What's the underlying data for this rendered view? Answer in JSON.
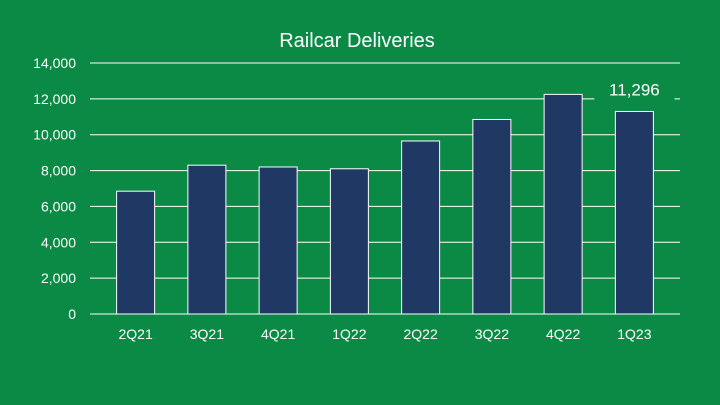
{
  "chart_data": {
    "type": "bar",
    "title": "Railcar Deliveries",
    "categories": [
      "2Q21",
      "3Q21",
      "4Q21",
      "1Q22",
      "2Q22",
      "3Q22",
      "4Q22",
      "1Q23"
    ],
    "values": [
      6850,
      8300,
      8200,
      8100,
      9650,
      10850,
      12250,
      11296
    ],
    "ylim": [
      0,
      14000
    ],
    "yticks": [
      0,
      2000,
      4000,
      6000,
      8000,
      10000,
      12000,
      14000
    ],
    "ytick_labels": [
      "0",
      "2,000",
      "4,000",
      "6,000",
      "8,000",
      "10,000",
      "12,000",
      "14,000"
    ],
    "data_labels": [
      {
        "category": "1Q23",
        "text": "11,296"
      }
    ],
    "grid": true,
    "legend": "none",
    "colors": {
      "background": "#0b8a45",
      "bar": "#1f3864",
      "bar_outline": "#ffffff",
      "text": "#ffffff",
      "grid": "#ffffff"
    }
  }
}
